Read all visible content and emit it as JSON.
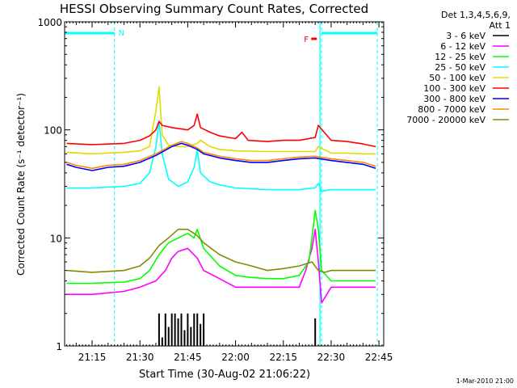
{
  "title": "HESSI Observing Summary Count Rates, Corrected",
  "footer_date": "1-Mar-2010 21:00",
  "chart_data": {
    "type": "line",
    "title": "HESSI Observing Summary Count Rates, Corrected",
    "xlabel": "Start Time (30-Aug-02 21:06:22)",
    "ylabel": "Corrected Count Rate (s⁻¹ detector⁻¹)",
    "yscale": "log",
    "ylim": [
      1,
      1000
    ],
    "xlim": [
      "21:06:22",
      "22:46:30"
    ],
    "x_ticks": [
      "21:15",
      "21:30",
      "21:45",
      "22:00",
      "22:15",
      "22:30",
      "22:45"
    ],
    "y_ticks": [
      "1",
      "10",
      "100",
      "1000"
    ],
    "legend": {
      "placement": "right",
      "header_lines": [
        "Det 1,3,4,5,6,9,",
        "Att 1"
      ],
      "entries": [
        {
          "label": "3 - 6 keV",
          "color": "#000000"
        },
        {
          "label": "6 - 12 keV",
          "color": "#ff00ff"
        },
        {
          "label": "12 - 25 keV",
          "color": "#00ff00"
        },
        {
          "label": "25 - 50 keV",
          "color": "#00ffff"
        },
        {
          "label": "50 - 100 keV",
          "color": "#dddd00"
        },
        {
          "label": "100 - 300 keV",
          "color": "#ff0000"
        },
        {
          "label": "300 - 800 keV",
          "color": "#0000ff"
        },
        {
          "label": "800 - 7000 keV",
          "color": "#ff8800"
        },
        {
          "label": "7000 - 20000 keV",
          "color": "#888800"
        }
      ]
    },
    "flags": {
      "night_label": "N",
      "flare_label": "F",
      "night_color": "#00ffff",
      "flare_color": "#ff0000",
      "night_intervals": [
        [
          "21:06:22",
          "21:22:00"
        ],
        [
          "22:27:00",
          "22:44:30"
        ]
      ],
      "dashed_lines": [
        "21:22:00",
        "22:27:00",
        "22:44:30"
      ],
      "solid_lines": [
        "22:26:30"
      ],
      "flare_marker": "22:24:30"
    },
    "series": [
      {
        "name": "3 - 6 keV",
        "color": "#000000",
        "x": [
          "21:36",
          "21:37",
          "21:38",
          "21:39",
          "21:40",
          "21:41",
          "21:42",
          "21:43",
          "21:44",
          "21:45",
          "21:46",
          "21:47",
          "21:48",
          "21:49",
          "21:50",
          "22:25"
        ],
        "y": [
          2,
          1.2,
          2,
          1.5,
          2,
          2,
          1.8,
          2,
          1.4,
          2,
          1.5,
          2,
          2,
          1.6,
          2,
          1.8
        ]
      },
      {
        "name": "6 - 12 keV",
        "color": "#ff00ff",
        "x": [
          "21:07",
          "21:15",
          "21:25",
          "21:30",
          "21:35",
          "21:38",
          "21:40",
          "21:42",
          "21:45",
          "21:48",
          "21:50",
          "21:55",
          "22:00",
          "22:05",
          "22:10",
          "22:15",
          "22:20",
          "22:22",
          "22:24",
          "22:25",
          "22:26",
          "22:27",
          "22:30",
          "22:35",
          "22:40",
          "22:44"
        ],
        "y": [
          3,
          3,
          3.2,
          3.5,
          4,
          5,
          6.5,
          7.5,
          8,
          6.5,
          5,
          4.2,
          3.5,
          3.5,
          3.5,
          3.5,
          3.5,
          5,
          8,
          12,
          6,
          2.5,
          3.5,
          3.5,
          3.5,
          3.5
        ]
      },
      {
        "name": "12 - 25 keV",
        "color": "#00ff00",
        "x": [
          "21:07",
          "21:15",
          "21:25",
          "21:30",
          "21:33",
          "21:36",
          "21:39",
          "21:42",
          "21:45",
          "21:47",
          "21:48",
          "21:50",
          "21:55",
          "22:00",
          "22:05",
          "22:10",
          "22:15",
          "22:20",
          "22:23",
          "22:24",
          "22:25",
          "22:26",
          "22:27",
          "22:30",
          "22:35",
          "22:40",
          "22:44"
        ],
        "y": [
          3.8,
          3.8,
          3.9,
          4.2,
          5,
          7,
          9,
          10,
          11,
          10,
          12,
          8,
          5.5,
          4.5,
          4.3,
          4.2,
          4.2,
          4.5,
          6,
          10,
          18,
          12,
          5,
          4,
          4,
          4,
          4
        ]
      },
      {
        "name": "25 - 50 keV",
        "color": "#00ffff",
        "x": [
          "21:07",
          "21:15",
          "21:25",
          "21:30",
          "21:33",
          "21:35",
          "21:36",
          "21:37",
          "21:39",
          "21:42",
          "21:45",
          "21:47",
          "21:48",
          "21:49",
          "21:52",
          "21:55",
          "22:00",
          "22:10",
          "22:20",
          "22:25",
          "22:26",
          "22:27",
          "22:30",
          "22:35",
          "22:40",
          "22:44"
        ],
        "y": [
          29,
          29,
          30,
          32,
          40,
          70,
          120,
          60,
          35,
          30,
          33,
          45,
          65,
          40,
          33,
          31,
          29,
          28,
          28,
          29,
          32,
          27,
          28,
          28,
          28,
          28
        ]
      },
      {
        "name": "50 - 100 keV",
        "color": "#dddd00",
        "x": [
          "21:07",
          "21:15",
          "21:25",
          "21:30",
          "21:33",
          "21:35",
          "21:36",
          "21:37",
          "21:39",
          "21:42",
          "21:45",
          "21:48",
          "21:49",
          "21:52",
          "21:55",
          "22:00",
          "22:10",
          "22:20",
          "22:25",
          "22:26",
          "22:30",
          "22:35",
          "22:40",
          "22:44"
        ],
        "y": [
          62,
          60,
          62,
          64,
          70,
          150,
          250,
          90,
          72,
          70,
          70,
          75,
          80,
          70,
          66,
          64,
          63,
          63,
          63,
          70,
          61,
          61,
          60,
          60
        ]
      },
      {
        "name": "100 - 300 keV",
        "color": "#ff0000",
        "x": [
          "21:07",
          "21:15",
          "21:25",
          "21:30",
          "21:33",
          "21:35",
          "21:36",
          "21:37",
          "21:40",
          "21:45",
          "21:47",
          "21:48",
          "21:49",
          "21:52",
          "21:55",
          "22:00",
          "22:02",
          "22:04",
          "22:10",
          "22:15",
          "22:20",
          "22:25",
          "22:26",
          "22:30",
          "22:35",
          "22:40",
          "22:44"
        ],
        "y": [
          75,
          73,
          75,
          80,
          88,
          100,
          120,
          110,
          105,
          100,
          110,
          140,
          105,
          95,
          88,
          83,
          95,
          80,
          78,
          80,
          80,
          85,
          110,
          80,
          78,
          74,
          70
        ]
      },
      {
        "name": "300 - 800 keV",
        "color": "#0000ff",
        "x": [
          "21:07",
          "21:10",
          "21:15",
          "21:20",
          "21:25",
          "21:30",
          "21:35",
          "21:40",
          "21:43",
          "21:45",
          "21:48",
          "21:50",
          "21:55",
          "22:00",
          "22:05",
          "22:10",
          "22:15",
          "22:20",
          "22:25",
          "22:30",
          "22:35",
          "22:40",
          "22:44"
        ],
        "y": [
          48,
          45,
          42,
          45,
          46,
          50,
          58,
          70,
          75,
          72,
          66,
          60,
          55,
          52,
          50,
          50,
          52,
          54,
          55,
          52,
          50,
          48,
          44
        ]
      },
      {
        "name": "800 - 7000 keV",
        "color": "#ff8800",
        "x": [
          "21:07",
          "21:10",
          "21:15",
          "21:20",
          "21:25",
          "21:30",
          "21:35",
          "21:40",
          "21:43",
          "21:45",
          "21:48",
          "21:50",
          "21:55",
          "22:00",
          "22:05",
          "22:10",
          "22:15",
          "22:20",
          "22:25",
          "22:30",
          "22:35",
          "22:40",
          "22:44"
        ],
        "y": [
          50,
          47,
          44,
          47,
          48,
          52,
          60,
          72,
          78,
          75,
          68,
          62,
          57,
          54,
          52,
          52,
          54,
          56,
          57,
          54,
          52,
          50,
          46
        ]
      },
      {
        "name": "7000 - 20000 keV",
        "color": "#888800",
        "x": [
          "21:07",
          "21:15",
          "21:25",
          "21:30",
          "21:33",
          "21:36",
          "21:39",
          "21:42",
          "21:45",
          "21:48",
          "21:50",
          "21:55",
          "22:00",
          "22:05",
          "22:10",
          "22:15",
          "22:20",
          "22:24",
          "22:26",
          "22:28",
          "22:30",
          "22:35",
          "22:40",
          "22:44"
        ],
        "y": [
          5,
          4.8,
          5,
          5.5,
          6.5,
          8.5,
          10,
          12,
          12,
          10.5,
          9,
          7,
          6,
          5.5,
          5,
          5.2,
          5.5,
          6,
          5,
          4.8,
          5,
          5,
          5,
          5
        ]
      }
    ]
  }
}
